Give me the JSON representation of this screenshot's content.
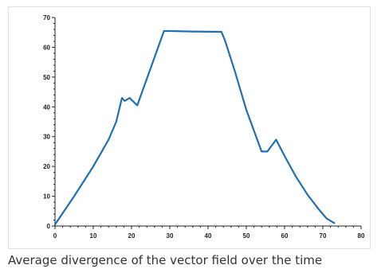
{
  "chart_data": {
    "type": "line",
    "title": "",
    "xlabel": "",
    "ylabel": "",
    "xlim": [
      0,
      80
    ],
    "ylim": [
      0,
      70
    ],
    "x_ticks": [
      0,
      10,
      20,
      30,
      40,
      50,
      60,
      70,
      80
    ],
    "y_ticks": [
      0,
      10,
      20,
      30,
      40,
      50,
      60,
      70
    ],
    "grid": false,
    "line_color": "#1f6fb2",
    "series": [
      {
        "points": [
          [
            0,
            0.5
          ],
          [
            5,
            10
          ],
          [
            10,
            20
          ],
          [
            14,
            29
          ],
          [
            16,
            35
          ],
          [
            17.5,
            43
          ],
          [
            18.2,
            42
          ],
          [
            19.5,
            43
          ],
          [
            21.5,
            40.5
          ],
          [
            25,
            53
          ],
          [
            28.5,
            65.5
          ],
          [
            36,
            65.3
          ],
          [
            43.5,
            65.2
          ],
          [
            44.5,
            62
          ],
          [
            47,
            52
          ],
          [
            50,
            39
          ],
          [
            54,
            25
          ],
          [
            55.5,
            25
          ],
          [
            57.8,
            29
          ],
          [
            60,
            23.5
          ],
          [
            63,
            16.5
          ],
          [
            66,
            10.5
          ],
          [
            69,
            5.5
          ],
          [
            71,
            2.5
          ],
          [
            73,
            1
          ]
        ]
      }
    ]
  },
  "caption": "Average divergence of the vector field over the time"
}
